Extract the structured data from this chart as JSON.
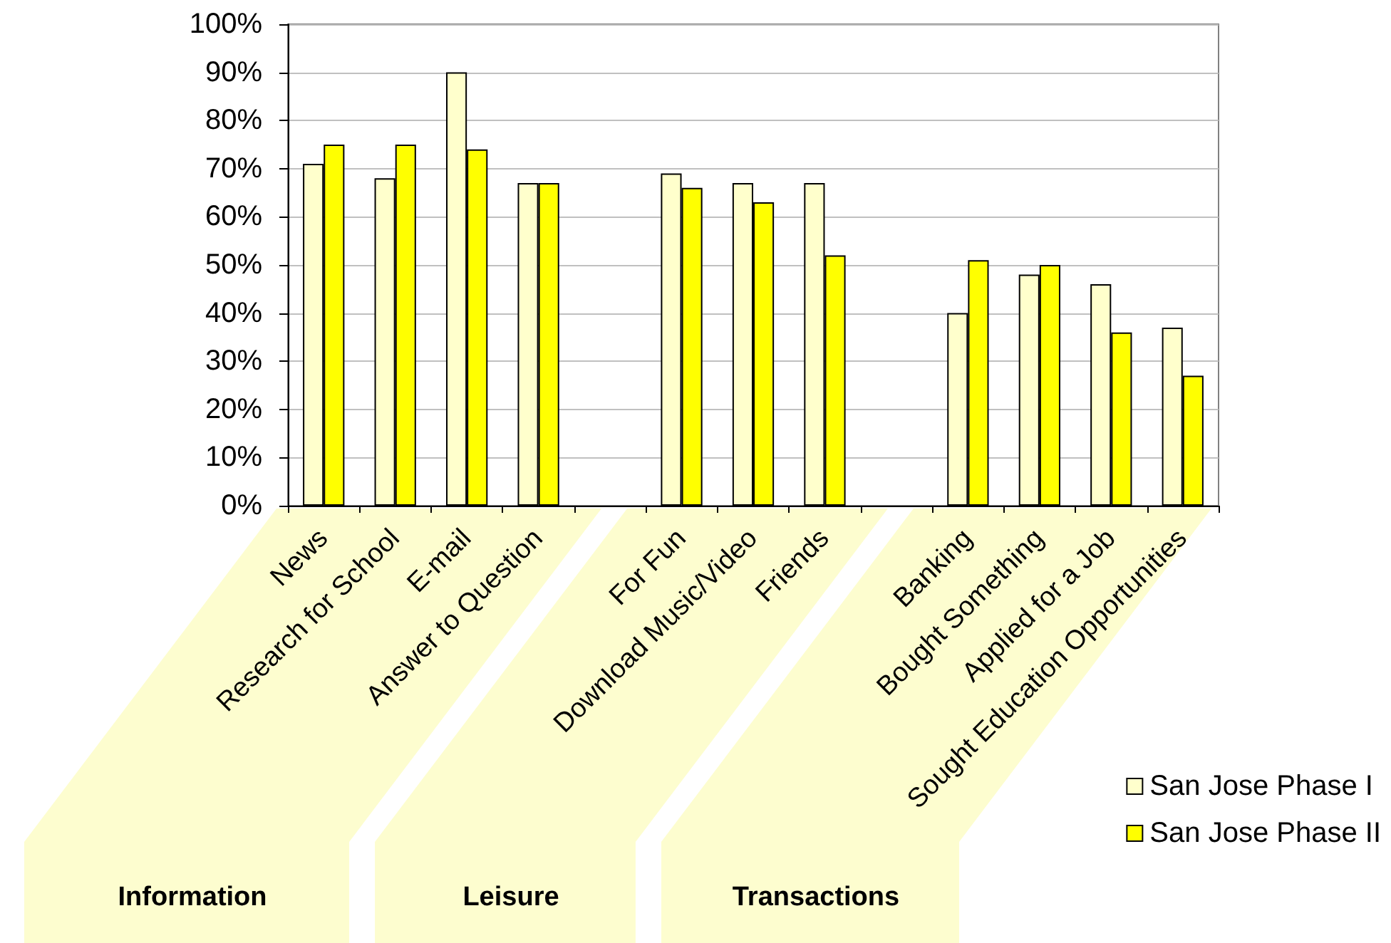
{
  "chart_data": {
    "type": "bar",
    "categories": [
      "News",
      "Research for School",
      "E-mail",
      "Answer to Question",
      null,
      "For Fun",
      "Download Music/Video",
      "Friends",
      null,
      "Banking",
      "Bought Something",
      "Applied for a Job",
      "Sought Education Opportunities"
    ],
    "series": [
      {
        "name": "San Jose Phase I",
        "color": "#ffffcc",
        "values": [
          71,
          68,
          90,
          67,
          null,
          69,
          67,
          67,
          null,
          40,
          48,
          46,
          37
        ]
      },
      {
        "name": "San Jose Phase II",
        "color": "#ffff00",
        "values": [
          75,
          75,
          74,
          67,
          null,
          66,
          63,
          52,
          null,
          51,
          50,
          36,
          27
        ]
      }
    ],
    "ylim": [
      0,
      100
    ],
    "yticks": [
      {
        "value": 0,
        "label": "0%"
      },
      {
        "value": 10,
        "label": "10%"
      },
      {
        "value": 20,
        "label": "20%"
      },
      {
        "value": 30,
        "label": "30%"
      },
      {
        "value": 40,
        "label": "40%"
      },
      {
        "value": 50,
        "label": "50%"
      },
      {
        "value": 60,
        "label": "60%"
      },
      {
        "value": 70,
        "label": "70%"
      },
      {
        "value": 80,
        "label": "80%"
      },
      {
        "value": 90,
        "label": "90%"
      },
      {
        "value": 100,
        "label": "100%"
      }
    ],
    "grid": "y",
    "legend": "bottom right",
    "annotations": [
      "Information",
      "Leisure",
      "Transactions"
    ]
  }
}
